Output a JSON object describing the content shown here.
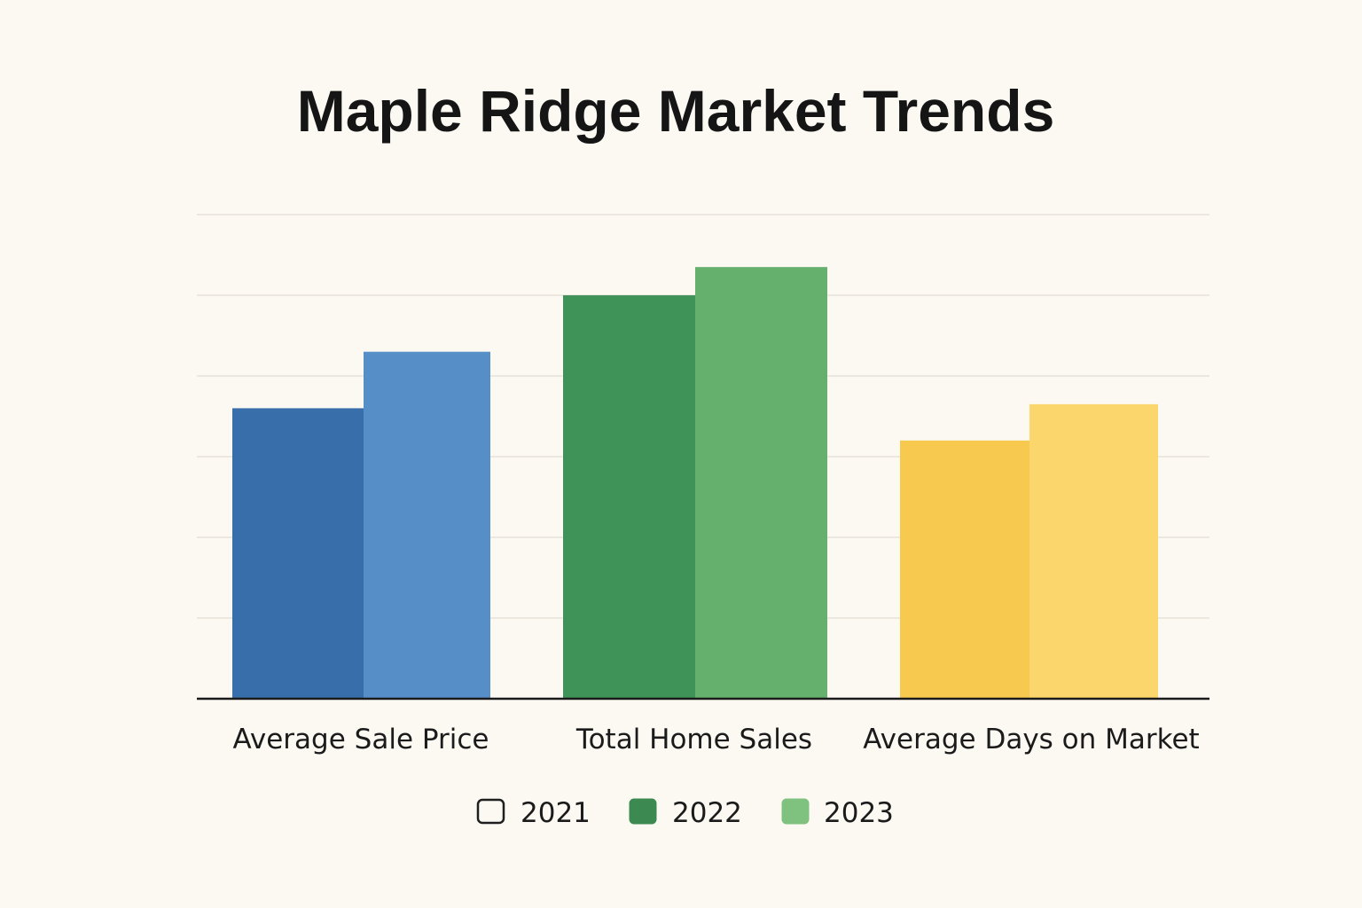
{
  "chart_data": {
    "type": "bar",
    "title": "Maple Ridge Market Trends",
    "categories": [
      "Average Sale Price",
      "Total Home Sales",
      "Average Days on Market"
    ],
    "series": [
      {
        "name": "2021"
      },
      {
        "name": "2022"
      },
      {
        "name": "2023"
      }
    ],
    "bars": [
      {
        "category": "Average Sale Price",
        "left_value": 3.6,
        "right_value": 4.3,
        "left_color": "#386fab",
        "right_color": "#568ec7"
      },
      {
        "category": "Total Home Sales",
        "left_value": 5.0,
        "right_value": 5.35,
        "left_color": "#3f9258",
        "right_color": "#66b06e"
      },
      {
        "category": "Average Days on Market",
        "left_value": 3.2,
        "right_value": 3.65,
        "left_color": "#f8c94f",
        "right_color": "#fad66c"
      }
    ],
    "legend": [
      {
        "label": "2021",
        "color": "#fcf9f3",
        "border": "#1f1f1f"
      },
      {
        "label": "2022",
        "color": "#3c8a52",
        "border": "#3c8a52"
      },
      {
        "label": "2023",
        "color": "#7fc17f",
        "border": "#7fc17f"
      }
    ],
    "legend_position": "bottom",
    "ylim": [
      0,
      6
    ],
    "gridlines": true,
    "y_tick_labels": false
  }
}
